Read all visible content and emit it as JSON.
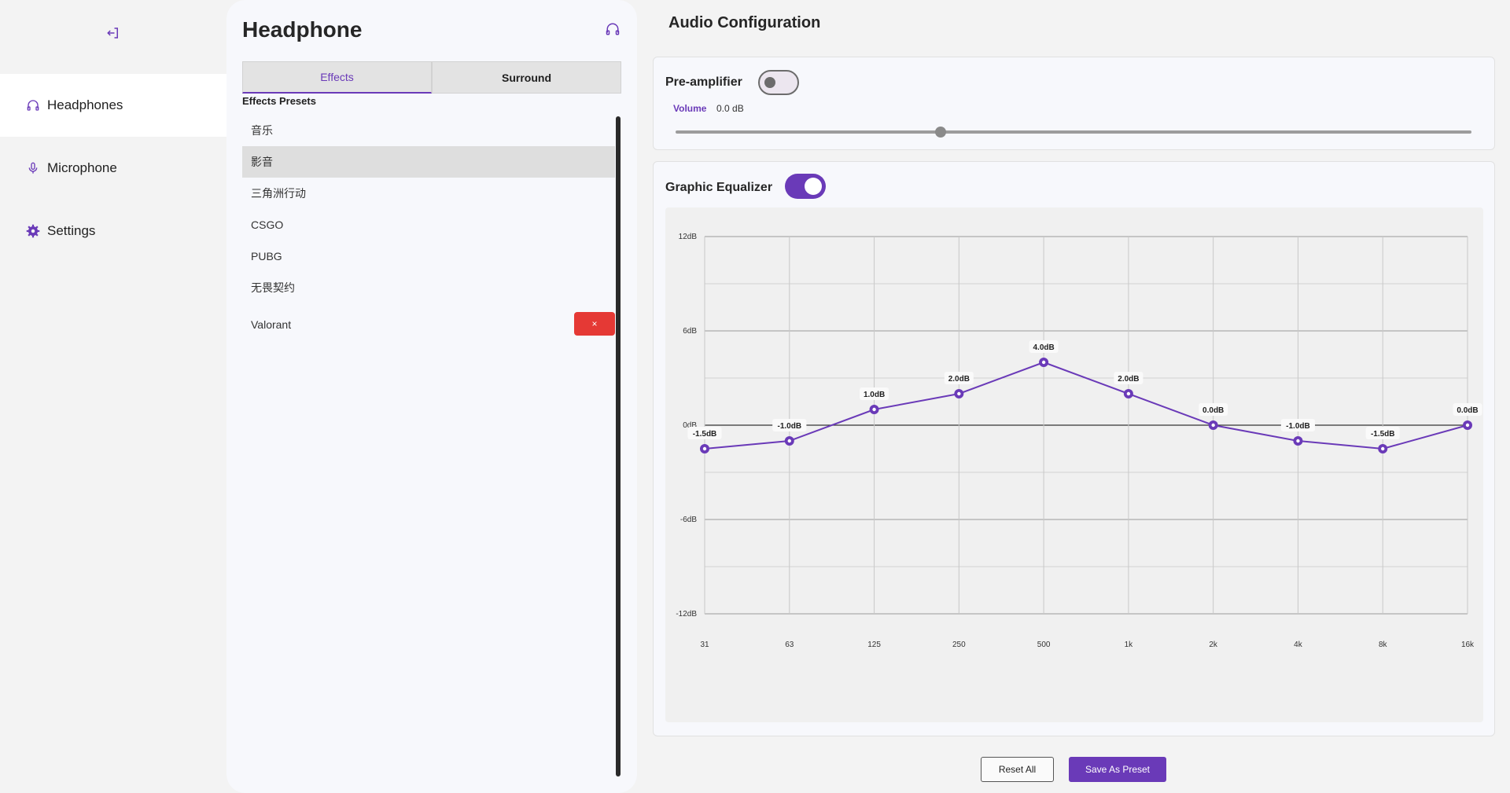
{
  "nav": {
    "items": [
      {
        "label": "Headphones",
        "icon": "headphones-icon",
        "active": true
      },
      {
        "label": "Microphone",
        "icon": "microphone-icon",
        "active": false
      },
      {
        "label": "Settings",
        "icon": "gear-icon",
        "active": false
      }
    ]
  },
  "panel": {
    "title": "Headphone",
    "tabs": [
      {
        "label": "Effects",
        "active": true
      },
      {
        "label": "Surround",
        "active": false
      }
    ],
    "presets_label": "Effects Presets",
    "presets": [
      {
        "label": "音乐",
        "selected": false
      },
      {
        "label": "影音",
        "selected": true
      },
      {
        "label": "三角洲行动",
        "selected": false
      },
      {
        "label": "CSGO",
        "selected": false
      },
      {
        "label": "PUBG",
        "selected": false
      },
      {
        "label": "无畏契约",
        "selected": false
      },
      {
        "label": "Valorant",
        "selected": false,
        "deletable": true
      }
    ],
    "delete_label": "×"
  },
  "main": {
    "title": "Audio Configuration",
    "preamp": {
      "title": "Pre-amplifier",
      "enabled": false,
      "volume_label": "Volume",
      "volume_value": "0.0 dB",
      "volume_fraction": 0.333
    },
    "equalizer": {
      "title": "Graphic Equalizer",
      "enabled": true
    },
    "buttons": {
      "reset": "Reset All",
      "save": "Save As Preset"
    }
  },
  "colors": {
    "accent": "#6a3ab8",
    "danger": "#e53935"
  },
  "chart_data": {
    "type": "line",
    "x": [
      "31",
      "63",
      "125",
      "250",
      "500",
      "1k",
      "2k",
      "4k",
      "8k",
      "16k"
    ],
    "series": [
      {
        "values": [
          -1.5,
          -1.0,
          1.0,
          2.0,
          4.0,
          2.0,
          0.0,
          -1.0,
          -1.5,
          0.0
        ]
      }
    ],
    "point_labels": [
      "-1.5dB",
      "-1.0dB",
      "1.0dB",
      "2.0dB",
      "4.0dB",
      "2.0dB",
      "0.0dB",
      "-1.0dB",
      "-1.5dB",
      "0.0dB"
    ],
    "ylim": [
      -12,
      12
    ],
    "yticks": [
      12,
      6,
      0,
      -6,
      -12
    ],
    "ytick_labels": [
      "12dB",
      "6dB",
      "0dB",
      "-6dB",
      "-12dB"
    ],
    "grid": true
  }
}
